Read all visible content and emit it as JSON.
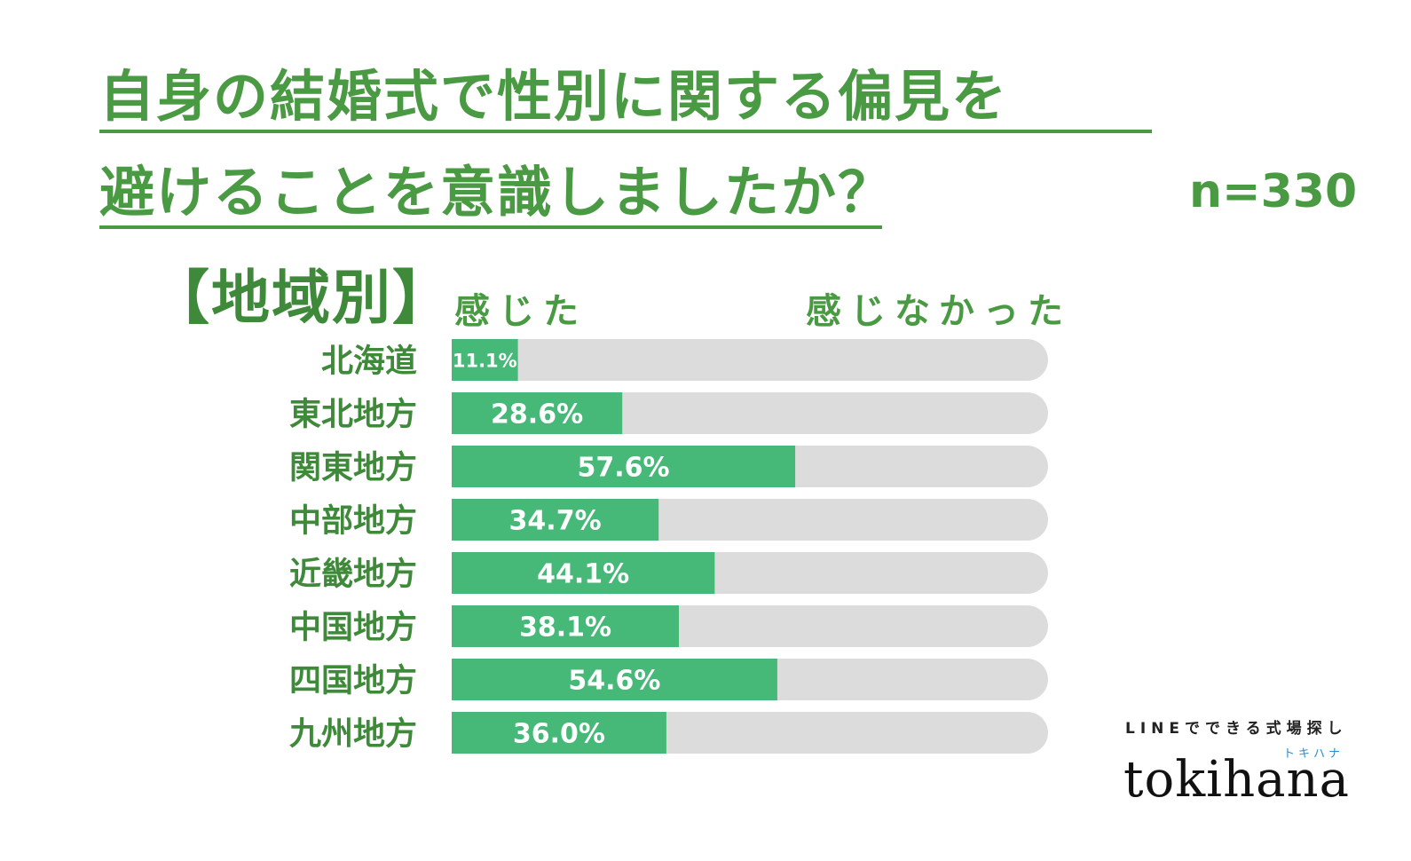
{
  "title_line_1": "自身の結婚式で性別に関する偏見を",
  "title_line_2": "避けることを意識しましたか？",
  "sample_size": "n=330",
  "section_label": "【地域別】",
  "legend": {
    "yes": "感じた",
    "no": "感じなかった"
  },
  "brand": {
    "tagline": "LINEでできる式場探し",
    "kana": "トキハナ",
    "logo": "tokihana"
  },
  "colors": {
    "felt": "#46b878",
    "track": "#dcdcdc",
    "accent": "#4a9a44"
  },
  "chart_data": {
    "type": "bar",
    "orientation": "horizontal",
    "stacked_to_100": true,
    "categories": [
      "北海道",
      "東北地方",
      "関東地方",
      "中部地方",
      "近畿地方",
      "中国地方",
      "四国地方",
      "九州地方"
    ],
    "series": [
      {
        "name": "感じた",
        "values": [
          11.1,
          28.6,
          57.6,
          34.7,
          44.1,
          38.1,
          54.6,
          36.0
        ]
      }
    ],
    "value_labels": [
      "11.1%",
      "28.6%",
      "57.6%",
      "34.7%",
      "44.1%",
      "38.1%",
      "54.6%",
      "36.0%"
    ],
    "xlim": [
      0,
      100
    ],
    "grid": false,
    "legend_placement": "top"
  }
}
